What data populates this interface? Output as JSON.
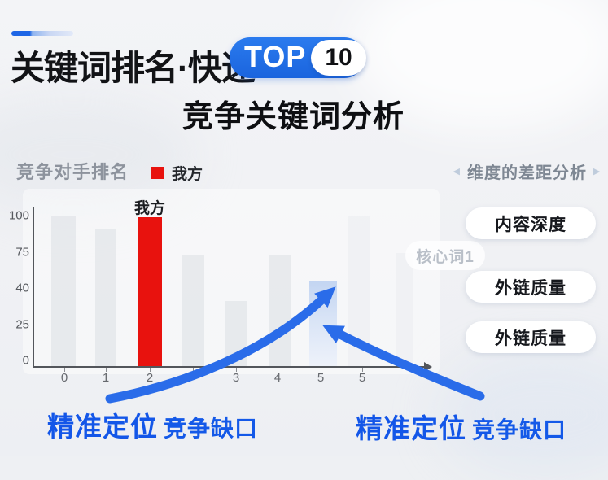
{
  "header": {
    "title": "关键词排名·快速",
    "badge_top": "TOP",
    "badge_number": "10",
    "subtitle": "竞争关键词分析"
  },
  "chart": {
    "section_label": "竞争对手排名",
    "legend_label": "我方",
    "ghost_tag": "核心词1",
    "colors": {
      "our_side": "#e8120e",
      "competitor_bar": "#e6e8eb",
      "gap_highlight": "#c3d5f2",
      "accent_blue": "#1a64de"
    }
  },
  "chart_data": {
    "type": "bar",
    "title": "竞争对手排名",
    "legend": [
      {
        "label": "我方",
        "color": "#e8120e"
      }
    ],
    "y_tick_labels": [
      "100",
      "75",
      "40",
      "25",
      "0"
    ],
    "x_tick_labels": [
      "0",
      "1",
      "2",
      "3",
      "4",
      "5",
      "5"
    ],
    "ylim": [
      0,
      100
    ],
    "grid": false,
    "bars": [
      {
        "value": 100,
        "series": "competitor"
      },
      {
        "value": 91,
        "series": "competitor"
      },
      {
        "value": 99,
        "series": "our",
        "label": "我方"
      },
      {
        "value": 74,
        "series": "competitor"
      },
      {
        "value": 43,
        "series": "competitor"
      },
      {
        "value": 74,
        "series": "competitor"
      },
      {
        "value": 56,
        "series": "gap-highlight"
      },
      {
        "value": 100,
        "series": "competitor-faint"
      },
      {
        "value": 75,
        "series": "competitor-faint"
      }
    ],
    "annotations": [
      "精准定位 竞争缺口",
      "精准定位 竞争缺口"
    ]
  },
  "right_panel": {
    "title": "维度的差距分析",
    "chevron_left": "◀",
    "chevron_right": "▶",
    "pills": [
      "内容深度",
      "外链质量",
      "外链质量"
    ]
  },
  "callouts": [
    {
      "strong": "精准定位",
      "rest": "竞争缺口"
    },
    {
      "strong": "精准定位",
      "rest": "竞争缺口"
    }
  ]
}
